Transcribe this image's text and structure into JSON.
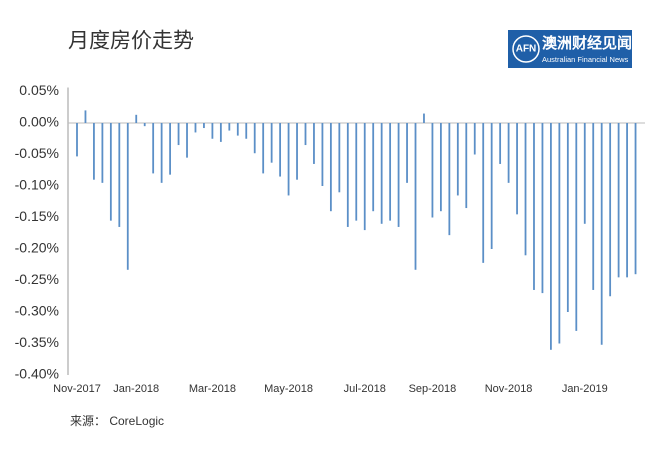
{
  "chart_data": {
    "type": "bar",
    "title": "月度房价走势",
    "categories": [
      "Nov-2017",
      null,
      null,
      null,
      null,
      null,
      null,
      "Jan-2018",
      null,
      null,
      null,
      null,
      null,
      null,
      null,
      null,
      "Mar-2018",
      null,
      null,
      null,
      null,
      null,
      null,
      null,
      null,
      "May-2018",
      null,
      null,
      null,
      null,
      null,
      null,
      null,
      null,
      "Jul-2018",
      null,
      null,
      null,
      null,
      null,
      null,
      null,
      "Sep-2018",
      null,
      null,
      null,
      null,
      null,
      null,
      null,
      null,
      "Nov-2018",
      null,
      null,
      null,
      null,
      null,
      null,
      null,
      null,
      "Jan-2019",
      null,
      null,
      null,
      null,
      null,
      null
    ],
    "values": [
      -0.053,
      0.02,
      -0.09,
      -0.095,
      -0.155,
      -0.165,
      -0.233,
      0.013,
      -0.005,
      -0.08,
      -0.095,
      -0.082,
      -0.035,
      -0.055,
      -0.015,
      -0.008,
      -0.025,
      -0.03,
      -0.012,
      -0.02,
      -0.025,
      -0.048,
      -0.08,
      -0.063,
      -0.085,
      -0.115,
      -0.09,
      -0.035,
      -0.065,
      -0.1,
      -0.14,
      -0.11,
      -0.165,
      -0.155,
      -0.17,
      -0.14,
      -0.16,
      -0.155,
      -0.165,
      -0.095,
      -0.233,
      0.015,
      -0.15,
      -0.14,
      -0.178,
      -0.115,
      -0.135,
      -0.05,
      -0.222,
      -0.2,
      -0.065,
      -0.095,
      -0.145,
      -0.21,
      -0.265,
      -0.27,
      -0.36,
      -0.35,
      -0.3,
      -0.33,
      -0.16,
      -0.265,
      -0.352,
      -0.275,
      -0.245,
      -0.245,
      -0.24
    ],
    "color": "#5b8fc7",
    "ylim": [
      -0.4,
      0.05
    ],
    "yticks": [
      {
        "value": 0.05,
        "label": "0.05%"
      },
      {
        "value": 0,
        "label": "0.00%"
      },
      {
        "value": -0.05,
        "label": "-0.05%"
      },
      {
        "value": -0.1,
        "label": "-0.10%"
      },
      {
        "value": -0.15,
        "label": "-0.15%"
      },
      {
        "value": -0.2,
        "label": "-0.20%"
      },
      {
        "value": -0.25,
        "label": "-0.25%"
      },
      {
        "value": -0.3,
        "label": "-0.30%"
      },
      {
        "value": -0.35,
        "label": "-0.35%"
      },
      {
        "value": -0.4,
        "label": "-0.40%"
      }
    ],
    "grid": false,
    "source": "来源： CoreLogic",
    "logo": {
      "mark": "AFN",
      "name": "澳洲财经见闻",
      "subtitle": "Australian Financial News"
    }
  }
}
